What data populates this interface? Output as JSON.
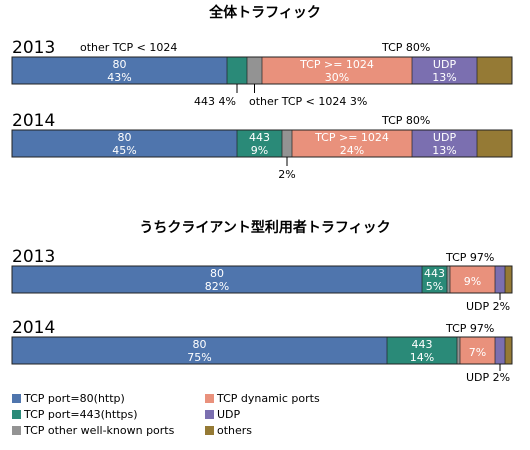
{
  "colors": {
    "tcp80": "#4f75ad",
    "tcp443": "#2a8a78",
    "tcp_other": "#939393",
    "tcp_dynamic": "#e9917c",
    "udp": "#7b6fb0",
    "others": "#957a35",
    "border": "#222222"
  },
  "legend": [
    {
      "key": "tcp80",
      "label": "TCP port=80(http)"
    },
    {
      "key": "tcp_dynamic",
      "label": "TCP dynamic ports"
    },
    {
      "key": "tcp443",
      "label": "TCP port=443(https)"
    },
    {
      "key": "udp",
      "label": "UDP"
    },
    {
      "key": "tcp_other",
      "label": "TCP other well-known ports"
    },
    {
      "key": "others",
      "label": "others"
    }
  ],
  "chart_data": [
    {
      "type": "bar",
      "orientation": "horizontal-stacked-100",
      "title": "全体トラフィック",
      "categories": [
        "2013",
        "2014"
      ],
      "series": [
        {
          "key": "tcp80",
          "values": [
            43,
            45
          ]
        },
        {
          "key": "tcp443",
          "values": [
            4,
            9
          ]
        },
        {
          "key": "tcp_other",
          "values": [
            3,
            2
          ]
        },
        {
          "key": "tcp_dynamic",
          "values": [
            30,
            24
          ]
        },
        {
          "key": "udp",
          "values": [
            13,
            13
          ]
        },
        {
          "key": "others",
          "values": [
            7,
            7
          ]
        }
      ],
      "segment_labels": [
        [
          {
            "key": "tcp80",
            "name": "80",
            "pct": "43%"
          },
          {
            "key": "tcp_dynamic",
            "name": "TCP >= 1024",
            "pct": "30%"
          },
          {
            "key": "udp",
            "name": "UDP",
            "pct": "13%"
          }
        ],
        [
          {
            "key": "tcp80",
            "name": "80",
            "pct": "45%"
          },
          {
            "key": "tcp443",
            "name": "443",
            "pct": "9%"
          },
          {
            "key": "tcp_dynamic",
            "name": "TCP >= 1024",
            "pct": "24%"
          },
          {
            "key": "udp",
            "name": "UDP",
            "pct": "13%"
          }
        ]
      ],
      "annotations": [
        [
          "other TCP < 1024",
          "TCP 80%",
          "443 4%",
          "other TCP < 1024 3%"
        ],
        [
          "TCP 80%",
          "2%"
        ]
      ]
    },
    {
      "type": "bar",
      "orientation": "horizontal-stacked-100",
      "title": "うちクライアント型利用者トラフィック",
      "categories": [
        "2013",
        "2014"
      ],
      "series": [
        {
          "key": "tcp80",
          "values": [
            82,
            75
          ]
        },
        {
          "key": "tcp443",
          "values": [
            5,
            14
          ]
        },
        {
          "key": "tcp_other",
          "values": [
            0.6,
            0.6
          ]
        },
        {
          "key": "tcp_dynamic",
          "values": [
            9,
            7
          ]
        },
        {
          "key": "udp",
          "values": [
            2,
            2
          ]
        },
        {
          "key": "others",
          "values": [
            1.4,
            1.4
          ]
        }
      ],
      "segment_labels": [
        [
          {
            "key": "tcp80",
            "name": "80",
            "pct": "82%"
          },
          {
            "key": "tcp443",
            "name": "443",
            "pct": "5%"
          },
          {
            "key": "tcp_dynamic",
            "name": "",
            "pct": "9%"
          }
        ],
        [
          {
            "key": "tcp80",
            "name": "80",
            "pct": "75%"
          },
          {
            "key": "tcp443",
            "name": "443",
            "pct": "14%"
          },
          {
            "key": "tcp_dynamic",
            "name": "",
            "pct": "7%"
          }
        ]
      ],
      "annotations": [
        [
          "TCP 97%",
          "UDP 2%"
        ],
        [
          "TCP 97%",
          "UDP 2%"
        ]
      ]
    }
  ]
}
